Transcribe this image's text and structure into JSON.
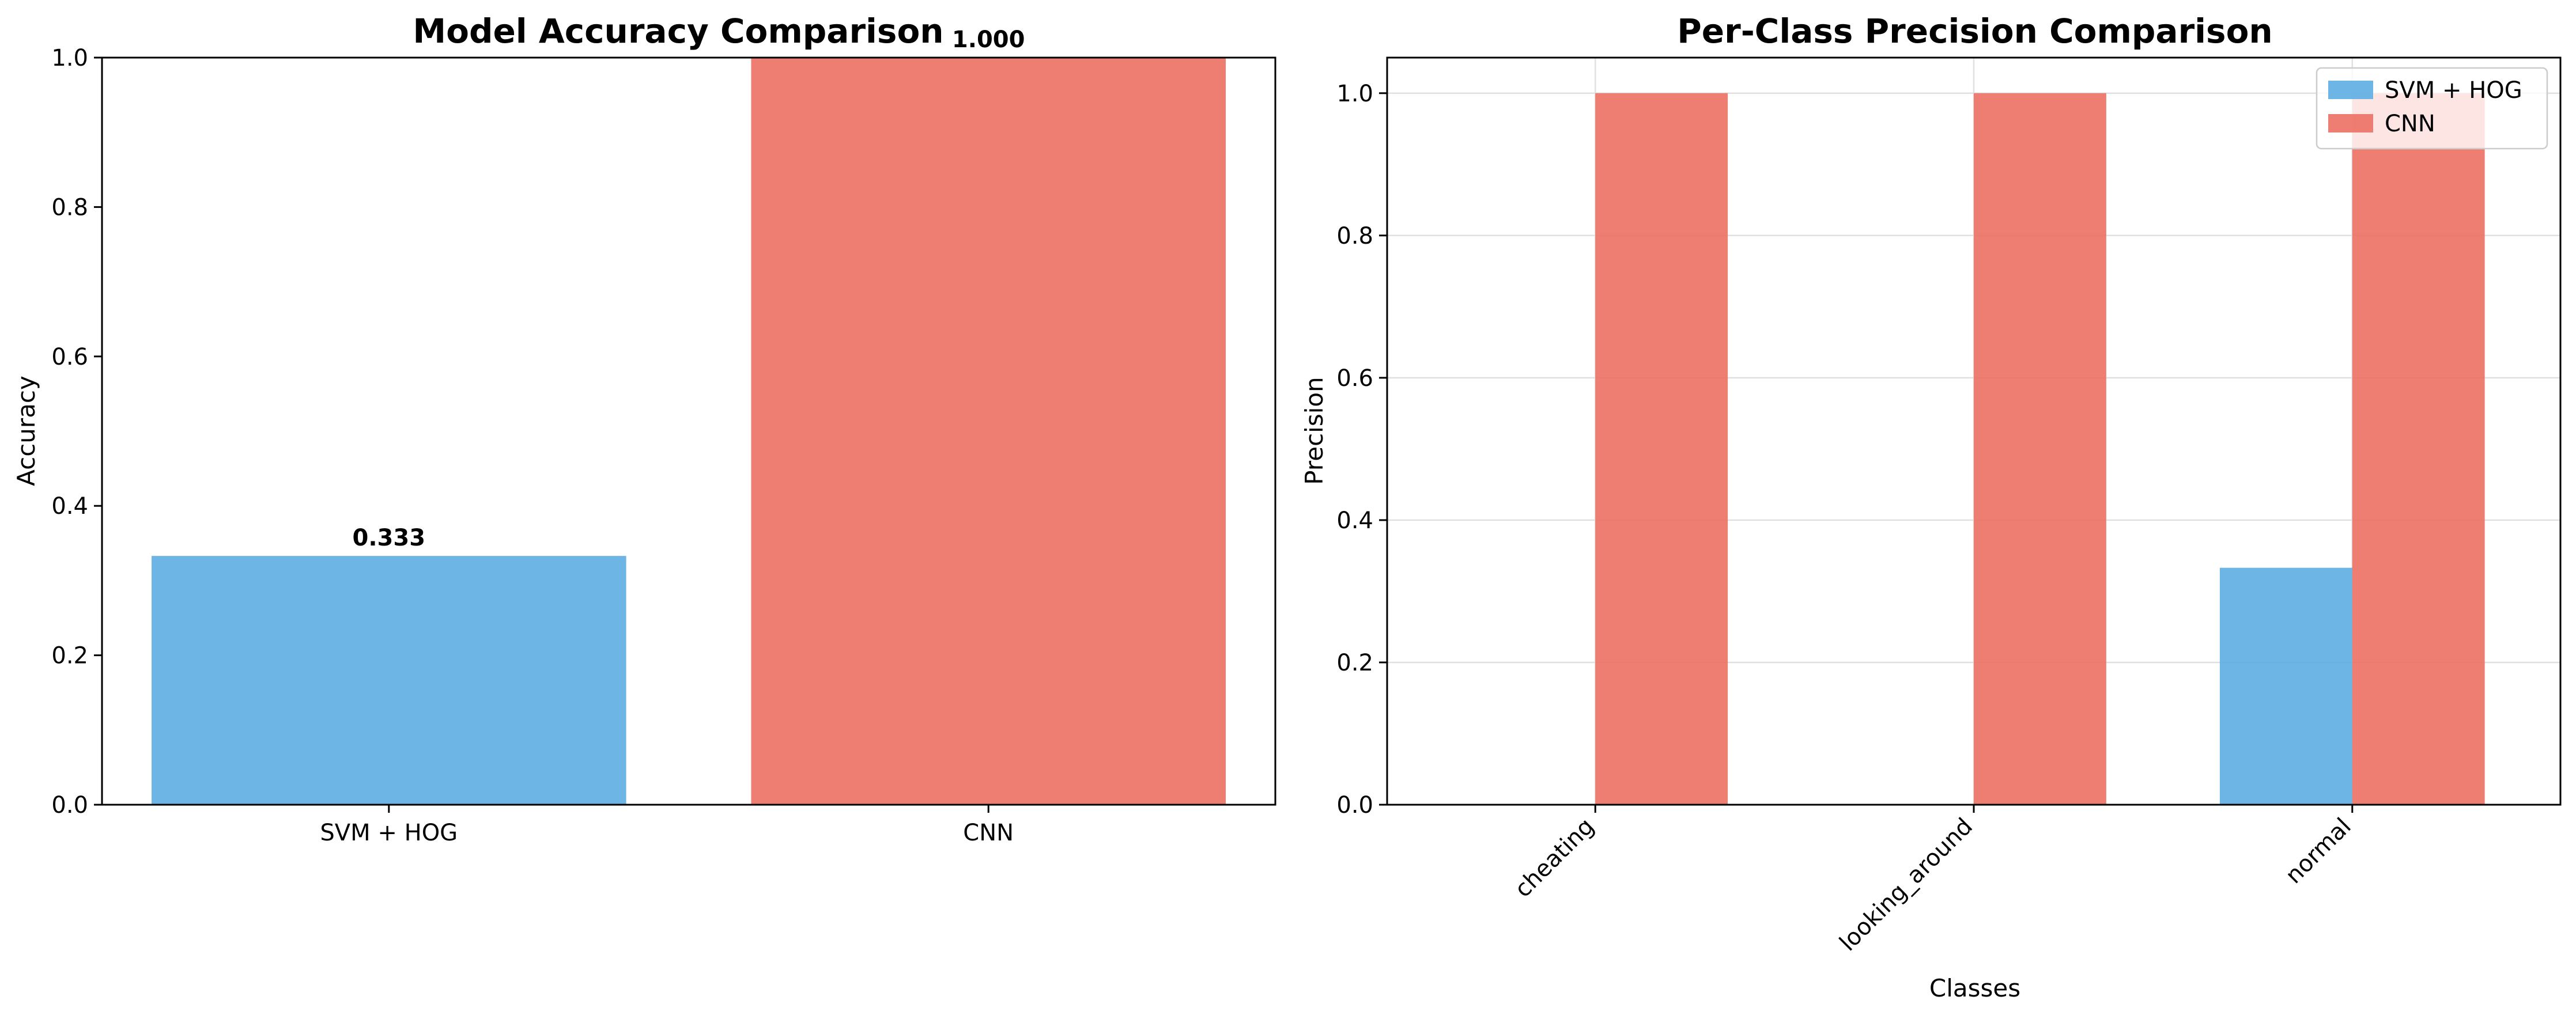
{
  "colors": {
    "svm": "#5dade2",
    "cnn": "#ec7063"
  },
  "chart_data": [
    {
      "type": "bar",
      "title": "Model Accuracy Comparison",
      "xlabel": "",
      "ylabel": "Accuracy",
      "categories": [
        "SVM + HOG",
        "CNN"
      ],
      "values": [
        0.333,
        1.0
      ],
      "value_labels": [
        "0.333",
        "1.000"
      ],
      "ylim": [
        0,
        1.0
      ],
      "yticks": [
        "0.0",
        "0.2",
        "0.4",
        "0.6",
        "0.8",
        "1.0"
      ],
      "grid": false
    },
    {
      "type": "bar",
      "title": "Per-Class Precision Comparison",
      "xlabel": "Classes",
      "ylabel": "Precision",
      "categories": [
        "cheating",
        "looking_around",
        "normal"
      ],
      "series": [
        {
          "name": "SVM + HOG",
          "values": [
            0.0,
            0.0,
            0.333
          ]
        },
        {
          "name": "CNN",
          "values": [
            1.0,
            1.0,
            1.0
          ]
        }
      ],
      "ylim": [
        0,
        1.05
      ],
      "yticks": [
        "0.0",
        "0.2",
        "0.4",
        "0.6",
        "0.8",
        "1.0"
      ],
      "grid": true,
      "legend": "top-right"
    }
  ]
}
